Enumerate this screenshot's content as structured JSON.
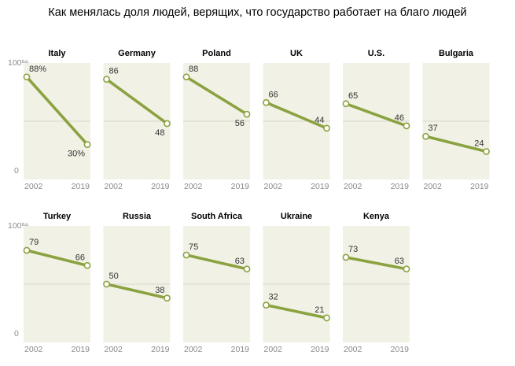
{
  "page": {
    "title": "Как менялась доля людей, верящих, что государство работает на благо людей"
  },
  "chart_data": {
    "type": "line",
    "x": [
      "2002",
      "2019"
    ],
    "ylim": [
      0,
      100
    ],
    "y_ticks": [
      "100%",
      "0"
    ],
    "colors": {
      "line": "#8aa23f",
      "panel_bg": "#f2f1e6",
      "gridline": "#cfcfc0"
    },
    "panels": [
      {
        "name": "Italy",
        "values": [
          88,
          30
        ],
        "labels": [
          "88%",
          "30%"
        ]
      },
      {
        "name": "Germany",
        "values": [
          86,
          48
        ],
        "labels": [
          "86",
          "48"
        ]
      },
      {
        "name": "Poland",
        "values": [
          88,
          56
        ],
        "labels": [
          "88",
          "56"
        ]
      },
      {
        "name": "UK",
        "values": [
          66,
          44
        ],
        "labels": [
          "66",
          "44"
        ]
      },
      {
        "name": "U.S.",
        "values": [
          65,
          46
        ],
        "labels": [
          "65",
          "46"
        ]
      },
      {
        "name": "Bulgaria",
        "values": [
          37,
          24
        ],
        "labels": [
          "37",
          "24"
        ]
      },
      {
        "name": "Turkey",
        "values": [
          79,
          66
        ],
        "labels": [
          "79",
          "66"
        ]
      },
      {
        "name": "Russia",
        "values": [
          50,
          38
        ],
        "labels": [
          "50",
          "38"
        ]
      },
      {
        "name": "South Africa",
        "values": [
          75,
          63
        ],
        "labels": [
          "75",
          "63"
        ]
      },
      {
        "name": "Ukraine",
        "values": [
          32,
          21
        ],
        "labels": [
          "32",
          "21"
        ]
      },
      {
        "name": "Kenya",
        "values": [
          73,
          63
        ],
        "labels": [
          "73",
          "63"
        ]
      }
    ]
  }
}
